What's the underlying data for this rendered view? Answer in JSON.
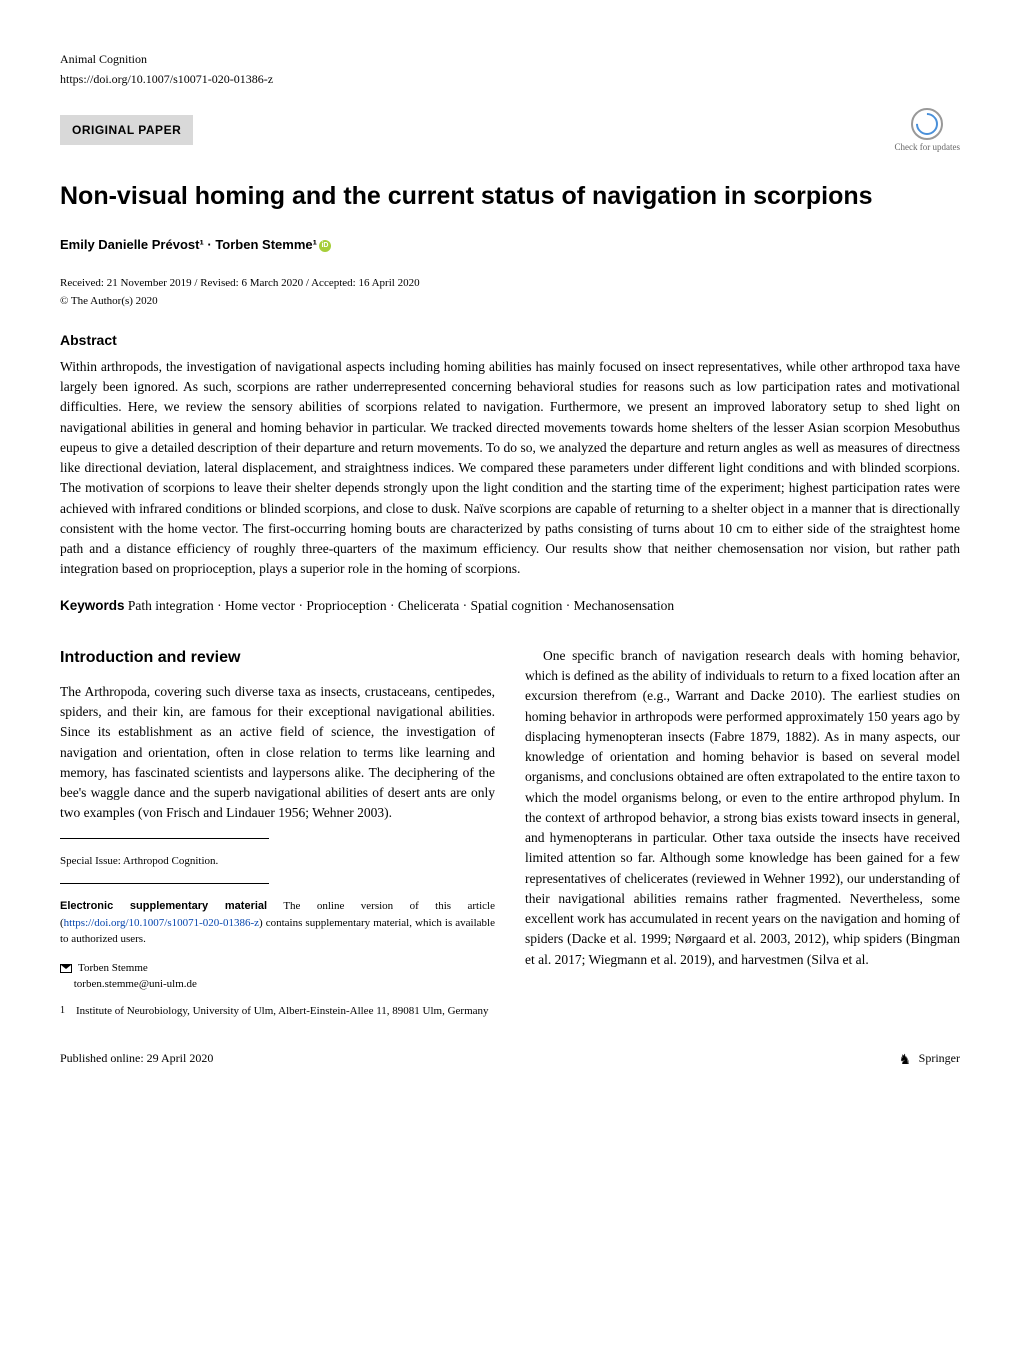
{
  "header": {
    "journal": "Animal Cognition",
    "doi": "https://doi.org/10.1007/s10071-020-01386-z",
    "article_type": "ORIGINAL PAPER",
    "check_updates": "Check for updates"
  },
  "title": "Non-visual homing and the current status of navigation in scorpions",
  "authors": "Emily Danielle Prévost¹ · Torben Stemme¹",
  "dates": "Received: 21 November 2019 / Revised: 6 March 2020 / Accepted: 16 April 2020",
  "copyright": "© The Author(s) 2020",
  "abstract": {
    "heading": "Abstract",
    "text": "Within arthropods, the investigation of navigational aspects including homing abilities has mainly focused on insect representatives, while other arthropod taxa have largely been ignored. As such, scorpions are rather underrepresented concerning behavioral studies for reasons such as low participation rates and motivational difficulties. Here, we review the sensory abilities of scorpions related to navigation. Furthermore, we present an improved laboratory setup to shed light on navigational abilities in general and homing behavior in particular. We tracked directed movements towards home shelters of the lesser Asian scorpion Mesobuthus eupeus to give a detailed description of their departure and return movements. To do so, we analyzed the departure and return angles as well as measures of directness like directional deviation, lateral displacement, and straightness indices. We compared these parameters under different light conditions and with blinded scorpions. The motivation of scorpions to leave their shelter depends strongly upon the light condition and the starting time of the experiment; highest participation rates were achieved with infrared conditions or blinded scorpions, and close to dusk. Naïve scorpions are capable of returning to a shelter object in a manner that is directionally consistent with the home vector. The first-occurring homing bouts are characterized by paths consisting of turns about 10 cm to either side of the straightest home path and a distance efficiency of roughly three-quarters of the maximum efficiency. Our results show that neither chemosensation nor vision, but rather path integration based on proprioception, plays a superior role in the homing of scorpions."
  },
  "keywords": {
    "label": "Keywords",
    "text": "  Path integration · Home vector · Proprioception · Chelicerata · Spatial cognition · Mechanosensation"
  },
  "intro": {
    "heading": "Introduction and review",
    "para1": "The Arthropoda, covering such diverse taxa as insects, crustaceans, centipedes, spiders, and their kin, are famous for their exceptional navigational abilities. Since its establishment as an active field of science, the investigation of navigation and orientation, often in close relation to terms like learning and memory, has fascinated scientists and laypersons alike. The deciphering of the bee's waggle dance and the superb navigational abilities of desert ants are only two examples (von Frisch and Lindauer 1956; Wehner 2003).",
    "para2": "One specific branch of navigation research deals with homing behavior, which is defined as the ability of individuals to return to a fixed location after an excursion therefrom (e.g., Warrant and Dacke 2010). The earliest studies on homing behavior in arthropods were performed approximately 150 years ago by displacing hymenopteran insects (Fabre 1879, 1882). As in many aspects, our knowledge of orientation and homing behavior is based on several model organisms, and conclusions obtained are often extrapolated to the entire taxon to which the model organisms belong, or even to the entire arthropod phylum. In the context of arthropod behavior, a strong bias exists toward insects in general, and hymenopterans in particular. Other taxa outside the insects have received limited attention so far. Although some knowledge has been gained for a few representatives of chelicerates (reviewed in Wehner 1992), our understanding of their navigational abilities remains rather fragmented. Nevertheless, some excellent work has accumulated in recent years on the navigation and homing of spiders (Dacke et al. 1999; Nørgaard et al. 2003, 2012), whip spiders (Bingman et al. 2017; Wiegmann et al. 2019), and harvestmen (Silva et al."
  },
  "footnotes": {
    "special_issue": "Special Issue: Arthropod Cognition.",
    "supp_label": "Electronic supplementary material",
    "supp_text_1": "  The online version of this article (",
    "supp_link": "https://doi.org/10.1007/s10071-020-01386-z",
    "supp_text_2": ") contains supplementary material, which is available to authorized users.",
    "corresponding_name": "Torben Stemme",
    "corresponding_email": "torben.stemme@uni-ulm.de",
    "affiliation_num": "1",
    "affiliation_text": "Institute of Neurobiology, University of Ulm, Albert-Einstein-Allee 11, 89081 Ulm, Germany"
  },
  "footer": {
    "published": "Published online: 29 April 2020",
    "publisher": "Springer"
  }
}
